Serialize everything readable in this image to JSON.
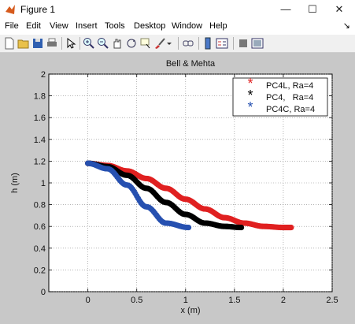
{
  "window": {
    "title": "Figure 1",
    "minimize_icon": "minimize-icon",
    "maximize_icon": "maximize-icon",
    "close_icon": "close-icon"
  },
  "menu": {
    "items": [
      "File",
      "Edit",
      "View",
      "Insert",
      "Tools",
      "Desktop",
      "Window",
      "Help"
    ]
  },
  "toolbar": {
    "icons": [
      "new-figure-icon",
      "open-file-icon",
      "save-icon",
      "print-icon",
      "select-arrow-icon",
      "zoom-in-icon",
      "zoom-out-icon",
      "pan-hand-icon",
      "rotate-3d-icon",
      "data-cursor-icon",
      "brush-icon",
      "brush-dropdown-icon",
      "link-plot-icon",
      "insert-colorbar-icon",
      "insert-legend-icon",
      "hide-plot-tools-icon",
      "show-plot-tools-icon"
    ]
  },
  "chart_data": {
    "type": "scatter",
    "title": "Bell & Mehta",
    "xlabel": "x (m)",
    "ylabel": "h (m)",
    "xlim": [
      -0.4,
      2.5
    ],
    "ylim": [
      0,
      2
    ],
    "xticks": [
      "0",
      "0.5",
      "1",
      "1.5",
      "2",
      "2.5"
    ],
    "yticks": [
      "0",
      "0.2",
      "0.4",
      "0.6",
      "0.8",
      "1",
      "1.2",
      "1.4",
      "1.6",
      "1.8",
      "2"
    ],
    "xtick_values": [
      0,
      0.5,
      1,
      1.5,
      2,
      2.5
    ],
    "ytick_values": [
      0,
      0.2,
      0.4,
      0.6,
      0.8,
      1,
      1.2,
      1.4,
      1.6,
      1.8,
      2
    ],
    "grid": true,
    "legend_position": "top-right",
    "series": [
      {
        "name": "PC4L, Ra=4",
        "color": "#e02020",
        "x_end": 2.08,
        "x": [
          0,
          0.2,
          0.4,
          0.6,
          0.8,
          1.0,
          1.2,
          1.4,
          1.6,
          1.8,
          2.0,
          2.08
        ],
        "y": [
          1.18,
          1.16,
          1.11,
          1.04,
          0.95,
          0.85,
          0.76,
          0.68,
          0.63,
          0.6,
          0.59,
          0.59
        ]
      },
      {
        "name": "PC4,   Ra=4",
        "color": "#000000",
        "x_end": 1.57,
        "x": [
          0,
          0.2,
          0.4,
          0.6,
          0.8,
          1.0,
          1.2,
          1.4,
          1.57
        ],
        "y": [
          1.18,
          1.15,
          1.07,
          0.95,
          0.82,
          0.71,
          0.63,
          0.6,
          0.59
        ]
      },
      {
        "name": "PC4C, Ra=4",
        "color": "#2650b0",
        "x_end": 1.03,
        "x": [
          0,
          0.2,
          0.4,
          0.6,
          0.8,
          1.03
        ],
        "y": [
          1.18,
          1.13,
          0.98,
          0.78,
          0.63,
          0.59
        ]
      }
    ]
  }
}
